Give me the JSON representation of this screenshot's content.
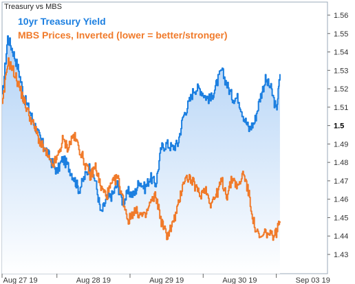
{
  "chart_data": {
    "type": "line",
    "title": "Treasury vs MBS",
    "xlabel": "",
    "ylabel": "",
    "ylim": [
      1.42,
      1.565
    ],
    "yticks": [
      "1.56",
      "1.55",
      "1.54",
      "1.53",
      "1.52",
      "1.51",
      "1.5",
      "1.49",
      "1.48",
      "1.47",
      "1.46",
      "1.45",
      "1.44",
      "1.43"
    ],
    "ytick_values": [
      1.56,
      1.55,
      1.54,
      1.53,
      1.52,
      1.51,
      1.5,
      1.49,
      1.48,
      1.47,
      1.46,
      1.45,
      1.44,
      1.43
    ],
    "bold_tick": "1.5",
    "x_tick_labels": [
      "Aug 27 19",
      "Aug 28 19",
      "Aug 29 19",
      "Aug 30 19",
      "Sep 03 19"
    ],
    "x_tick_positions": [
      0.5,
      2.5,
      4.5,
      6.5,
      8.5
    ],
    "xlim": [
      0,
      8.9
    ],
    "grid": false,
    "legend_placement": "top-left",
    "series": [
      {
        "name": "10yr Treasury Yield",
        "color": "#1c7fe0",
        "fill": "gradient",
        "x": [
          0.0,
          0.15,
          0.3,
          0.45,
          0.6,
          0.75,
          0.9,
          1.05,
          1.2,
          1.35,
          1.5,
          1.65,
          1.8,
          1.95,
          2.1,
          2.25,
          2.4,
          2.55,
          2.7,
          2.85,
          3.0,
          3.15,
          3.3,
          3.45,
          3.6,
          3.75,
          3.9,
          4.05,
          4.2,
          4.35,
          4.5,
          4.65,
          4.8,
          4.95,
          5.1,
          5.25,
          5.4,
          5.55,
          5.7,
          5.85,
          6.0,
          6.15,
          6.3,
          6.45,
          6.6,
          6.75,
          6.9,
          7.05,
          7.2,
          7.35,
          7.5,
          7.6
        ],
        "values": [
          1.515,
          1.548,
          1.54,
          1.53,
          1.515,
          1.508,
          1.5,
          1.492,
          1.487,
          1.48,
          1.475,
          1.482,
          1.478,
          1.472,
          1.465,
          1.472,
          1.478,
          1.47,
          1.452,
          1.46,
          1.462,
          1.468,
          1.458,
          1.464,
          1.462,
          1.47,
          1.466,
          1.472,
          1.468,
          1.488,
          1.49,
          1.488,
          1.49,
          1.505,
          1.512,
          1.52,
          1.52,
          1.516,
          1.514,
          1.522,
          1.53,
          1.522,
          1.515,
          1.515,
          1.505,
          1.498,
          1.502,
          1.515,
          1.525,
          1.52,
          1.508,
          1.528
        ]
      },
      {
        "name": "MBS Prices, Inverted (lower = better/stronger)",
        "color": "#f07a2a",
        "fill": "none",
        "x": [
          0.0,
          0.15,
          0.3,
          0.45,
          0.6,
          0.75,
          0.9,
          1.05,
          1.2,
          1.35,
          1.5,
          1.65,
          1.8,
          1.95,
          2.1,
          2.25,
          2.4,
          2.55,
          2.7,
          2.85,
          3.0,
          3.15,
          3.3,
          3.45,
          3.6,
          3.75,
          3.9,
          4.05,
          4.2,
          4.35,
          4.5,
          4.65,
          4.8,
          4.95,
          5.1,
          5.25,
          5.4,
          5.55,
          5.7,
          5.85,
          6.0,
          6.15,
          6.3,
          6.45,
          6.6,
          6.75,
          6.9,
          7.05,
          7.2,
          7.35,
          7.5,
          7.6
        ],
        "values": [
          1.51,
          1.535,
          1.53,
          1.522,
          1.513,
          1.505,
          1.498,
          1.49,
          1.485,
          1.478,
          1.482,
          1.492,
          1.488,
          1.495,
          1.488,
          1.48,
          1.472,
          1.478,
          1.466,
          1.462,
          1.468,
          1.472,
          1.46,
          1.448,
          1.454,
          1.452,
          1.45,
          1.458,
          1.462,
          1.448,
          1.44,
          1.446,
          1.455,
          1.47,
          1.472,
          1.468,
          1.462,
          1.466,
          1.458,
          1.462,
          1.47,
          1.462,
          1.472,
          1.466,
          1.475,
          1.462,
          1.445,
          1.438,
          1.442,
          1.44,
          1.442,
          1.448
        ]
      }
    ]
  }
}
